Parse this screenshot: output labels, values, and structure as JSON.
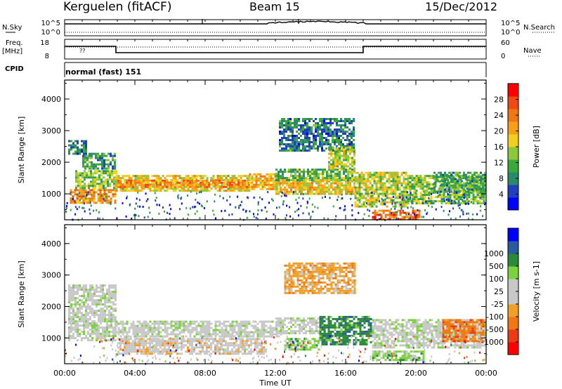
{
  "header": {
    "station": "Kerguelen (fitACF)",
    "beam": "Beam 15",
    "date": "15/Dec/2012"
  },
  "summary": {
    "nsky_label": "N.Sky",
    "nsky_ticks": [
      "10^5",
      "10^0"
    ],
    "nsearch_label": "N.Search",
    "nsearch_ticks": [
      "10^5",
      "10^0"
    ],
    "freq_label": "Freq.",
    "freq_unit": "[MHz]",
    "freq_ticks": [
      "18",
      "8"
    ],
    "nave_label": "Nave",
    "nave_ticks": [
      "60",
      "0"
    ],
    "cpid_label": "CPID",
    "cpid_value": "normal (fast) 151",
    "freq_mark": "??"
  },
  "colors": {
    "power": [
      "#0000ff",
      "#2040c0",
      "#2a8a6a",
      "#3aa83a",
      "#8cc83c",
      "#f0d01c",
      "#f5a018",
      "#f07814",
      "#f04a14",
      "#ff0000"
    ],
    "velocity": [
      "#ff0000",
      "#e83c14",
      "#f07814",
      "#f0a028",
      "#c8c8c8",
      "#c8c8c8",
      "#7cd23c",
      "#2a8a3a",
      "#2a5aa0",
      "#0000ff"
    ]
  },
  "chart_data": [
    {
      "type": "heatmap",
      "name": "power",
      "ylabel": "Slant Range [km]",
      "yticks": [
        1000,
        2000,
        3000,
        4000
      ],
      "ylim": [
        180,
        4600
      ],
      "colorbar_label": "Power [dB]",
      "colorbar_ticks": [
        4,
        8,
        12,
        16,
        20,
        24,
        28
      ],
      "colorbar_range": [
        0,
        32
      ],
      "bands": [
        {
          "x0": 0.3,
          "x1": 2.9,
          "y0": 700,
          "y1": 1150,
          "v": 23
        },
        {
          "x0": 0.6,
          "x1": 2.9,
          "y0": 1200,
          "y1": 1750,
          "v": 14
        },
        {
          "x0": 1.0,
          "x1": 2.9,
          "y0": 1800,
          "y1": 2300,
          "v": 9
        },
        {
          "x0": 0.2,
          "x1": 1.2,
          "y0": 2250,
          "y1": 2700,
          "v": 7
        },
        {
          "x0": 2.9,
          "x1": 10.5,
          "y0": 1100,
          "y1": 1600,
          "v": 18
        },
        {
          "x0": 3.0,
          "x1": 10.5,
          "y0": 1200,
          "y1": 1450,
          "v": 23
        },
        {
          "x0": 10.5,
          "x1": 12.2,
          "y0": 1150,
          "y1": 1650,
          "v": 21
        },
        {
          "x0": 12.0,
          "x1": 16.5,
          "y0": 1000,
          "y1": 1500,
          "v": 19
        },
        {
          "x0": 12.0,
          "x1": 16.5,
          "y0": 1450,
          "y1": 1800,
          "v": 12
        },
        {
          "x0": 12.2,
          "x1": 16.5,
          "y0": 2400,
          "y1": 3400,
          "v": 7
        },
        {
          "x0": 15.0,
          "x1": 16.5,
          "y0": 1800,
          "y1": 2500,
          "v": 15
        },
        {
          "x0": 16.5,
          "x1": 19.5,
          "y0": 600,
          "y1": 1700,
          "v": 16
        },
        {
          "x0": 17.5,
          "x1": 20.2,
          "y0": 220,
          "y1": 500,
          "v": 26
        },
        {
          "x0": 19.5,
          "x1": 23.9,
          "y0": 700,
          "y1": 1600,
          "v": 13
        },
        {
          "x0": 21.0,
          "x1": 23.9,
          "y0": 1100,
          "y1": 1700,
          "v": 10
        }
      ]
    },
    {
      "type": "heatmap",
      "name": "velocity",
      "xlabel": "Time UT",
      "xticks": [
        "00:00",
        "04:00",
        "08:00",
        "12:00",
        "16:00",
        "20:00",
        "00:00"
      ],
      "ylabel": "Slant Range [km]",
      "yticks": [
        1000,
        2000,
        3000,
        4000
      ],
      "ylim": [
        180,
        4600
      ],
      "colorbar_label": "Velocity [m s-1]",
      "colorbar_ticks": [
        "-1000",
        "-500",
        "-100",
        "-25",
        "25",
        "100",
        "500",
        "1000"
      ],
      "bands": [
        {
          "x0": 0.2,
          "x1": 2.9,
          "y0": 900,
          "y1": 2700,
          "v": 5
        },
        {
          "x0": 2.9,
          "x1": 12.5,
          "y0": 1050,
          "y1": 1550,
          "v": 5
        },
        {
          "x0": 3.0,
          "x1": 11.5,
          "y0": 500,
          "y1": 1000,
          "v": 4
        },
        {
          "x0": 12.0,
          "x1": 14.8,
          "y0": 1150,
          "y1": 1650,
          "v": 5
        },
        {
          "x0": 12.5,
          "x1": 14.5,
          "y0": 600,
          "y1": 1000,
          "v": 6
        },
        {
          "x0": 14.5,
          "x1": 17.5,
          "y0": 800,
          "y1": 1700,
          "v": 7
        },
        {
          "x0": 12.5,
          "x1": 16.5,
          "y0": 2400,
          "y1": 3400,
          "v": 3
        },
        {
          "x0": 17.5,
          "x1": 20.5,
          "y0": 300,
          "y1": 600,
          "v": 6
        },
        {
          "x0": 17.5,
          "x1": 23.9,
          "y0": 700,
          "y1": 1600,
          "v": 5
        },
        {
          "x0": 21.5,
          "x1": 23.9,
          "y0": 900,
          "y1": 1600,
          "v": 2
        }
      ]
    }
  ]
}
